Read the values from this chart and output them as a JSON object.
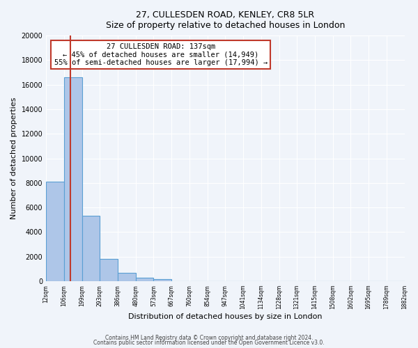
{
  "title1": "27, CULLESDEN ROAD, KENLEY, CR8 5LR",
  "title2": "Size of property relative to detached houses in London",
  "xlabel": "Distribution of detached houses by size in London",
  "ylabel": "Number of detached properties",
  "bar_labels": [
    "12sqm",
    "106sqm",
    "199sqm",
    "293sqm",
    "386sqm",
    "480sqm",
    "573sqm",
    "667sqm",
    "760sqm",
    "854sqm",
    "947sqm",
    "1041sqm",
    "1134sqm",
    "1228sqm",
    "1321sqm",
    "1415sqm",
    "1508sqm",
    "1602sqm",
    "1695sqm",
    "1789sqm",
    "1882sqm"
  ],
  "bar_heights": [
    8100,
    16600,
    5300,
    1800,
    700,
    300,
    150,
    0,
    0,
    0,
    0,
    0,
    0,
    0,
    0,
    0,
    0,
    0,
    0,
    0,
    0
  ],
  "bar_color": "#aec6e8",
  "bar_edge_color": "#5a9fd4",
  "property_line_x": 137,
  "bin_edges": [
    12,
    106,
    199,
    293,
    386,
    480,
    573,
    667,
    760,
    854,
    947,
    1041,
    1134,
    1228,
    1321,
    1415,
    1508,
    1602,
    1695,
    1789,
    1882
  ],
  "ylim": [
    0,
    20000
  ],
  "yticks": [
    0,
    2000,
    4000,
    6000,
    8000,
    10000,
    12000,
    14000,
    16000,
    18000,
    20000
  ],
  "annotation_title": "27 CULLESDEN ROAD: 137sqm",
  "annotation_line1": "← 45% of detached houses are smaller (14,949)",
  "annotation_line2": "55% of semi-detached houses are larger (17,994) →",
  "vline_color": "#c0392b",
  "annotation_box_color": "#ffffff",
  "annotation_box_edge": "#c0392b",
  "footer1": "Contains HM Land Registry data © Crown copyright and database right 2024.",
  "footer2": "Contains public sector information licensed under the Open Government Licence v3.0.",
  "background_color": "#f0f4fa"
}
